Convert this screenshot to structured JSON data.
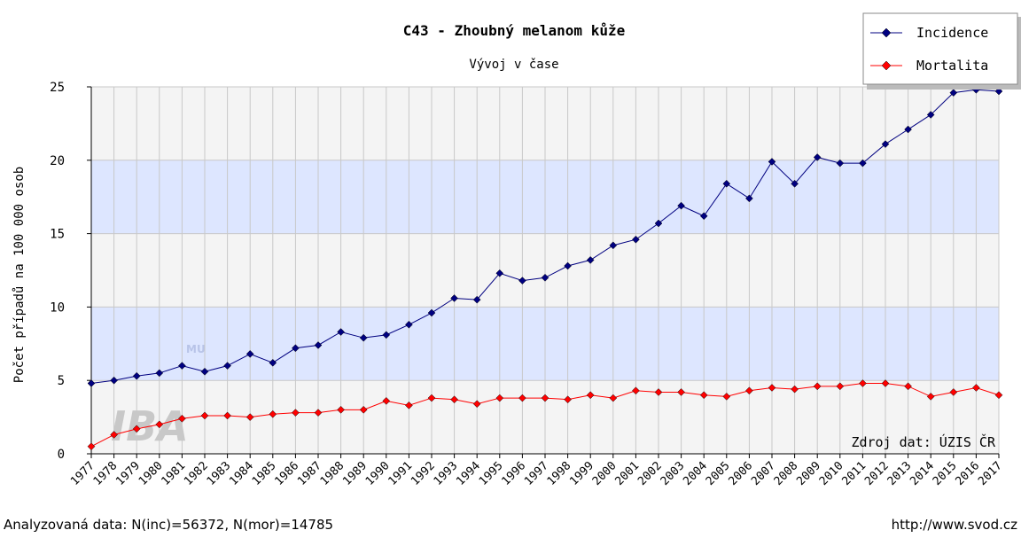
{
  "chart_data": {
    "type": "line",
    "title": "C43 - Zhoubný melanom kůže",
    "subtitle": "Vývoj v čase",
    "y_label": "Počet případů na 100 000 osob",
    "source": "Zdroj dat: ÚZIS ČR",
    "footer_left": "Analyzovaná data: N(inc)=56372, N(mor)=14785",
    "footer_right": "http://www.svod.cz",
    "logo": {
      "top": "MU",
      "main": "IBA"
    },
    "x": [
      1977,
      1978,
      1979,
      1980,
      1981,
      1982,
      1983,
      1984,
      1985,
      1986,
      1987,
      1988,
      1989,
      1990,
      1991,
      1992,
      1993,
      1994,
      1995,
      1996,
      1997,
      1998,
      1999,
      2000,
      2001,
      2002,
      2003,
      2004,
      2005,
      2006,
      2007,
      2008,
      2009,
      2010,
      2011,
      2012,
      2013,
      2014,
      2015,
      2016,
      2017
    ],
    "xlim": [
      1977,
      2017
    ],
    "ylim": [
      0,
      25
    ],
    "yticks": [
      0,
      5,
      10,
      15,
      20,
      25
    ],
    "grid": true,
    "legend": "top-right",
    "series": [
      {
        "name": "Incidence",
        "color": "#000080",
        "values": [
          4.8,
          5.0,
          5.3,
          5.5,
          6.0,
          5.6,
          6.0,
          6.8,
          6.2,
          7.2,
          7.4,
          8.3,
          7.9,
          8.1,
          8.8,
          9.6,
          10.6,
          10.5,
          12.3,
          11.8,
          12.0,
          12.8,
          13.2,
          14.2,
          14.6,
          15.7,
          16.9,
          16.2,
          18.4,
          17.4,
          19.9,
          18.4,
          20.2,
          19.8,
          19.8,
          21.1,
          22.1,
          23.1,
          24.6,
          24.8,
          24.7
        ]
      },
      {
        "name": "Mortalita",
        "color": "#ff0000",
        "values": [
          0.5,
          1.3,
          1.7,
          2.0,
          2.4,
          2.6,
          2.6,
          2.5,
          2.7,
          2.8,
          2.8,
          3.0,
          3.0,
          3.6,
          3.3,
          3.8,
          3.7,
          3.4,
          3.8,
          3.8,
          3.8,
          3.7,
          4.0,
          3.8,
          4.3,
          4.2,
          4.2,
          4.0,
          3.9,
          4.3,
          4.5,
          4.4,
          4.6,
          4.6,
          4.8,
          4.8,
          4.6,
          3.9,
          4.2,
          4.5,
          4.0
        ]
      }
    ]
  }
}
